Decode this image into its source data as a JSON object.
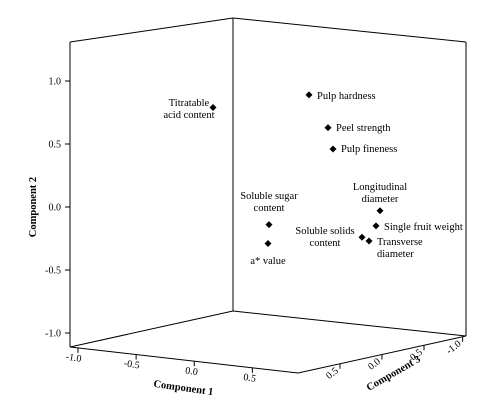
{
  "chart_data": {
    "type": "scatter",
    "title": "",
    "axes": {
      "component_1": {
        "label": "Component 1",
        "ticks": [
          "-1.0",
          "-0.5",
          "0.0",
          "0.5"
        ]
      },
      "component_2": {
        "label": "Component 2",
        "ticks": [
          "1.0",
          "0.5",
          "0.0",
          "-0.5",
          "-1.0"
        ],
        "ylim": [
          -1.0,
          1.0
        ]
      },
      "component_3": {
        "label": "Component 3",
        "ticks": [
          "0.5",
          "0.0",
          "-0.5",
          "-1.0"
        ]
      }
    },
    "grid": false,
    "legend": "none",
    "points": [
      {
        "name": "Titratable acid content",
        "lines": [
          "Titratable",
          "acid content"
        ],
        "component_2": 0.79
      },
      {
        "name": "Pulp hardness",
        "lines": [
          "Pulp hardness"
        ],
        "component_2": 0.89
      },
      {
        "name": "Peel strength",
        "lines": [
          "Peel strength"
        ],
        "component_2": 0.63
      },
      {
        "name": "Pulp fineness",
        "lines": [
          "Pulp fineness"
        ],
        "component_2": 0.46
      },
      {
        "name": "Longitudinal diameter",
        "lines": [
          "Longitudinal",
          "diameter"
        ],
        "component_2": -0.03
      },
      {
        "name": "Single fruit weight",
        "lines": [
          "Single fruit weight"
        ],
        "component_2": -0.15
      },
      {
        "name": "Transverse diameter",
        "lines": [
          "Transverse",
          "diameter"
        ],
        "component_2": -0.27
      },
      {
        "name": "Soluble solids content",
        "lines": [
          "Soluble solids",
          "content"
        ],
        "component_2": -0.24
      },
      {
        "name": "Soluble sugar content",
        "lines": [
          "Soluble sugar",
          "content"
        ],
        "component_2": -0.14
      },
      {
        "name": "a* value",
        "lines": [
          "a* value"
        ],
        "component_2": -0.29
      }
    ]
  }
}
